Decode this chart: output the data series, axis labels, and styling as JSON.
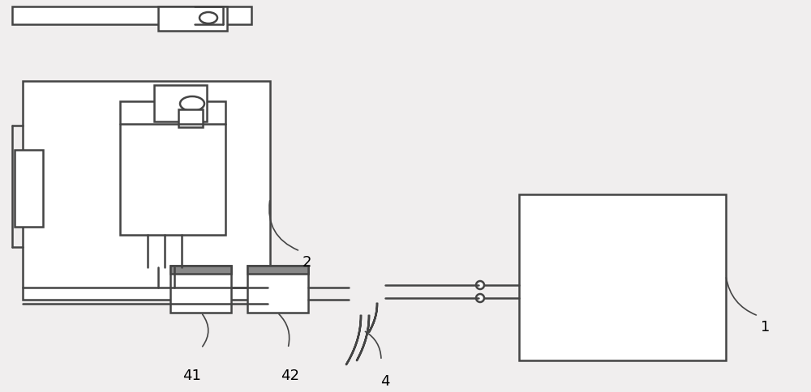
{
  "bg_color": "#f0eeee",
  "line_color": "#444444",
  "line_width": 1.8,
  "thin_lw": 1.2,
  "label_fontsize": 13,
  "figsize": [
    10.0,
    4.84
  ],
  "dpi": 100
}
